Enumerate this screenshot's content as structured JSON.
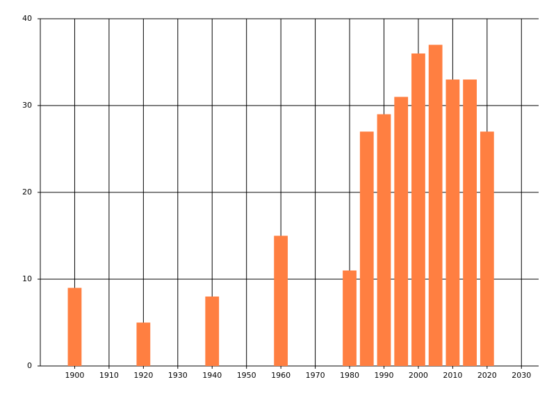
{
  "chart_data": {
    "type": "bar",
    "x": [
      1900,
      1920,
      1940,
      1960,
      1980,
      1985,
      1990,
      1995,
      2000,
      2005,
      2010,
      2015,
      2020
    ],
    "values": [
      9,
      5,
      8,
      15,
      11,
      27,
      29,
      31,
      36,
      37,
      33,
      33,
      27
    ],
    "color": "#ff7f41",
    "xlim": [
      1890,
      2035
    ],
    "xticks": [
      1900,
      1910,
      1920,
      1930,
      1940,
      1950,
      1960,
      1970,
      1980,
      1990,
      2000,
      2010,
      2020,
      2030
    ],
    "ylim": [
      0,
      40
    ],
    "yticks": [
      0,
      10,
      20,
      30,
      40
    ],
    "grid": true
  }
}
